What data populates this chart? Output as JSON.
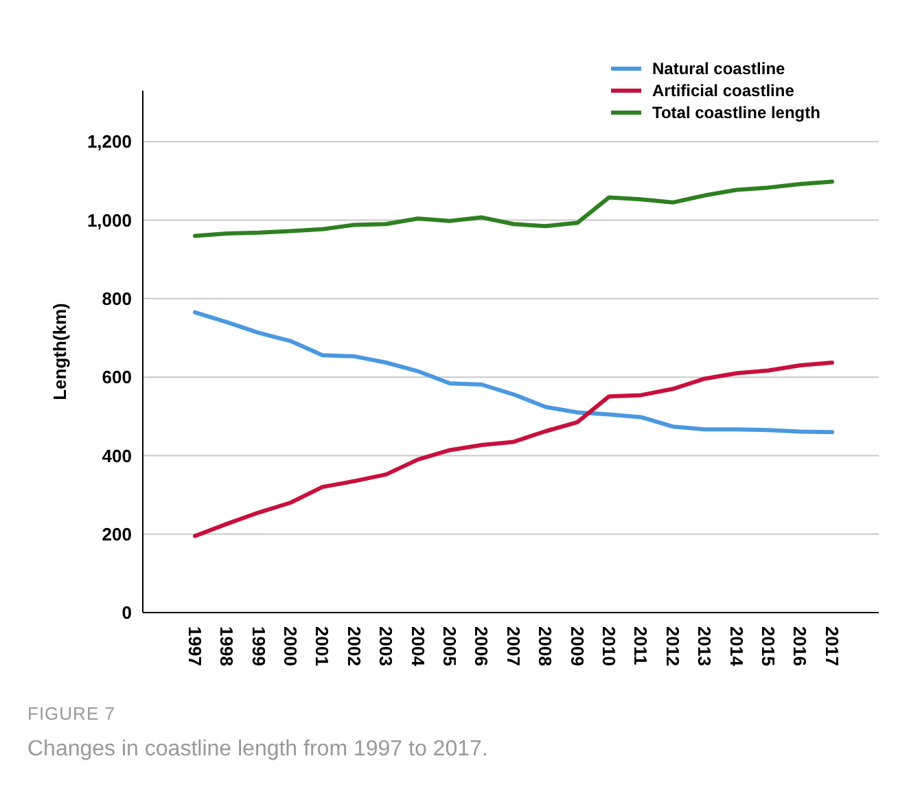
{
  "chart_data": {
    "type": "line",
    "ylabel": "Length(km)",
    "categories": [
      "1997",
      "1998",
      "1999",
      "2000",
      "2001",
      "2002",
      "2003",
      "2004",
      "2005",
      "2006",
      "2007",
      "2008",
      "2009",
      "2010",
      "2011",
      "2012",
      "2013",
      "2014",
      "2015",
      "2016",
      "2017"
    ],
    "series": [
      {
        "name": "Natural coastline",
        "color": "#4a98e0",
        "values": [
          765,
          740,
          713,
          692,
          656,
          653,
          637,
          615,
          584,
          581,
          556,
          524,
          510,
          505,
          498,
          474,
          467,
          467,
          465,
          461,
          460
        ]
      },
      {
        "name": "Artificial coastline",
        "color": "#c8103c",
        "values": [
          195,
          226,
          255,
          280,
          320,
          335,
          352,
          390,
          414,
          427,
          435,
          462,
          485,
          551,
          554,
          570,
          596,
          610,
          617,
          630,
          637
        ]
      },
      {
        "name": "Total coastline length",
        "color": "#2e8020",
        "values": [
          960,
          966,
          968,
          972,
          977,
          988,
          990,
          1004,
          998,
          1007,
          990,
          985,
          993,
          1058,
          1053,
          1045,
          1063,
          1077,
          1083,
          1092,
          1098
        ]
      }
    ],
    "ylim": [
      0,
      1330
    ],
    "yticks": [
      0,
      200,
      400,
      600,
      800,
      {
        "value": 1000,
        "label": "1,000"
      },
      {
        "value": 1200,
        "label": "1,200"
      }
    ],
    "grid": "y",
    "legend": "top right",
    "marker": "none",
    "line_style": "solid",
    "annotations": [
      "FIGURE 7",
      "Changes in coastline length from 1997 to 2017."
    ]
  }
}
